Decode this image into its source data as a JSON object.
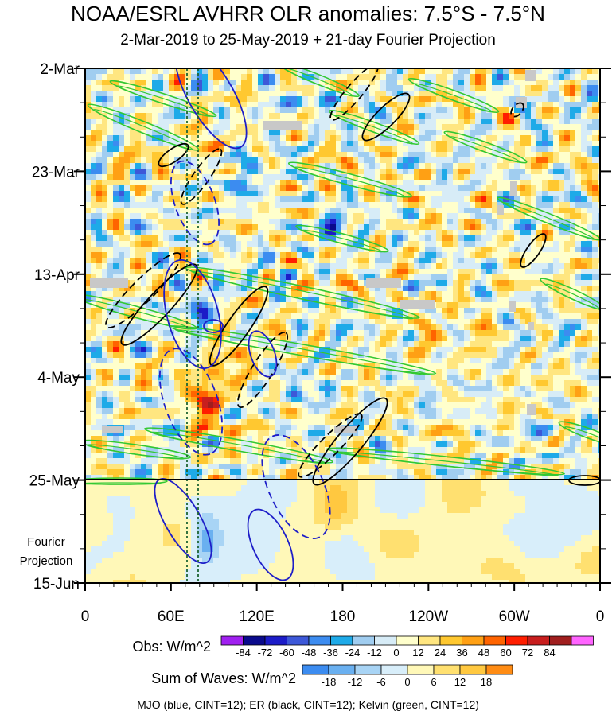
{
  "chart_data": {
    "type": "heatmap",
    "title": "NOAA/ESRL AVHRR OLR anomalies: 7.5°S - 7.5°N",
    "subtitle": "2-Mar-2019 to 25-May-2019 + 21-day Fourier Projection",
    "x_ticks": [
      "0",
      "60E",
      "120E",
      "180",
      "120W",
      "60W",
      "0"
    ],
    "x_tick_degrees": [
      0,
      60,
      120,
      180,
      240,
      300,
      360
    ],
    "xlim": [
      0,
      360
    ],
    "y_ticks": [
      "2-Mar",
      "23-Mar",
      "13-Apr",
      "4-May",
      "25-May",
      "15-Jun"
    ],
    "y_tick_days": [
      0,
      21,
      42,
      63,
      84,
      105
    ],
    "ylim": [
      0,
      105
    ],
    "projection_label_lines": [
      "Fourier",
      "Projection"
    ],
    "obs_legend": {
      "label": "Obs: W/m^2",
      "levels": [
        "-84",
        "-72",
        "-60",
        "-48",
        "-36",
        "-24",
        "-12",
        "0",
        "12",
        "24",
        "36",
        "48",
        "60",
        "72",
        "84"
      ],
      "colors": [
        "#a020f0",
        "#0a0a8c",
        "#1c1cc8",
        "#3d58d8",
        "#3c8cf0",
        "#1eaae8",
        "#a0cdf0",
        "#d7ecf7",
        "#ffffcc",
        "#ffe680",
        "#ffc830",
        "#ffa014",
        "#ff6400",
        "#ff1e00",
        "#c81e1e",
        "#a01e1e",
        "#ff64ff"
      ]
    },
    "waves_legend": {
      "label": "Sum of Waves: W/m^2",
      "levels": [
        "-18",
        "-12",
        "-6",
        "0",
        "6",
        "12",
        "18"
      ],
      "colors": [
        "#3c8cf0",
        "#6ab0f0",
        "#a8d4f5",
        "#d8eefa",
        "#fff8b8",
        "#ffe070",
        "#ffc840",
        "#ff8c14"
      ]
    },
    "footer": "MJO (blue, CINT=12); ER (black, CINT=12); Kelvin (green, CINT=12)"
  }
}
